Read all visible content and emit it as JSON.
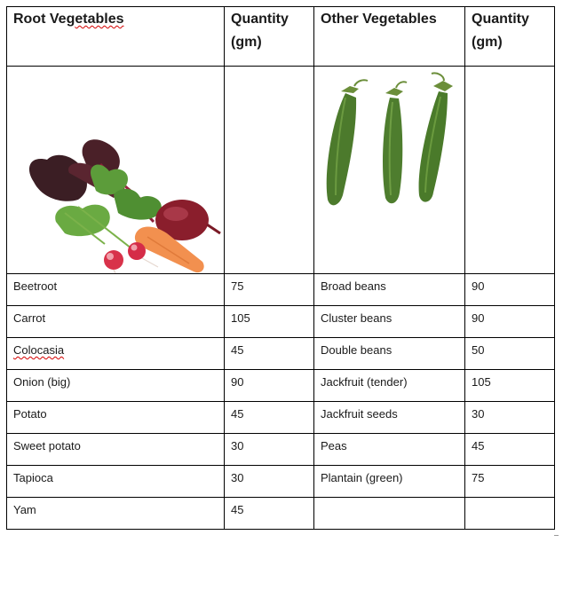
{
  "headers": {
    "root_title": "Root Vegetables",
    "root_qty": "Quantity (gm)",
    "other_title": "Other Vegetables",
    "other_qty": "Quantity (gm)"
  },
  "images": {
    "root": "root-vegetables-photo",
    "other": "pea-pods-photo"
  },
  "rows": [
    {
      "root": "Beetroot",
      "root_qty": "75",
      "other": "Broad beans",
      "other_qty": "90"
    },
    {
      "root": "Carrot",
      "root_qty": "105",
      "other": "Cluster beans",
      "other_qty": "90"
    },
    {
      "root": "Colocasia",
      "root_qty": "45",
      "other": "Double beans",
      "other_qty": "50"
    },
    {
      "root": "Onion (big)",
      "root_qty": "90",
      "other": "Jackfruit (tender)",
      "other_qty": "105"
    },
    {
      "root": "Potato",
      "root_qty": "45",
      "other": "Jackfruit seeds",
      "other_qty": "30"
    },
    {
      "root": "Sweet potato",
      "root_qty": "30",
      "other": "Peas",
      "other_qty": "45"
    },
    {
      "root": "Tapioca",
      "root_qty": "30",
      "other": "Plantain (green)",
      "other_qty": "75"
    },
    {
      "root": "Yam",
      "root_qty": "45",
      "other": "",
      "other_qty": ""
    }
  ]
}
